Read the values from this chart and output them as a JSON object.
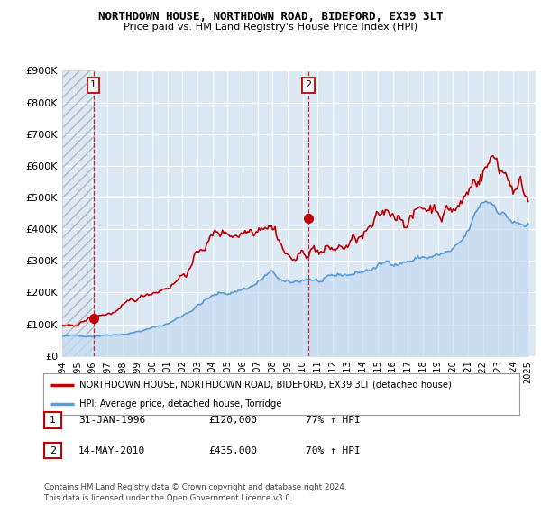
{
  "title": "NORTHDOWN HOUSE, NORTHDOWN ROAD, BIDEFORD, EX39 3LT",
  "subtitle": "Price paid vs. HM Land Registry's House Price Index (HPI)",
  "background_color": "#ffffff",
  "plot_bg_color": "#dce9f5",
  "grid_color": "#ffffff",
  "hpi_color": "#5b9bd5",
  "hpi_fill_color": "#c5d9f0",
  "sale_color": "#c00000",
  "hatch_color": "#b0b8c8",
  "ylim": [
    0,
    900000
  ],
  "yticks": [
    0,
    100000,
    200000,
    300000,
    400000,
    500000,
    600000,
    700000,
    800000,
    900000
  ],
  "ytick_labels": [
    "£0",
    "£100K",
    "£200K",
    "£300K",
    "£400K",
    "£500K",
    "£600K",
    "£700K",
    "£800K",
    "£900K"
  ],
  "sale1_x": 1996.08,
  "sale1_y": 120000,
  "sale1_label": "1",
  "sale2_x": 2010.37,
  "sale2_y": 435000,
  "sale2_label": "2",
  "legend_line1": "NORTHDOWN HOUSE, NORTHDOWN ROAD, BIDEFORD, EX39 3LT (detached house)",
  "legend_line2": "HPI: Average price, detached house, Torridge",
  "table_row1": [
    "1",
    "31-JAN-1996",
    "£120,000",
    "77% ↑ HPI"
  ],
  "table_row2": [
    "2",
    "14-MAY-2010",
    "£435,000",
    "70% ↑ HPI"
  ],
  "footer": "Contains HM Land Registry data © Crown copyright and database right 2024.\nThis data is licensed under the Open Government Licence v3.0.",
  "xmin": 1994.0,
  "xmax": 2025.5,
  "xticks": [
    1994,
    1995,
    1996,
    1997,
    1998,
    1999,
    2000,
    2001,
    2002,
    2003,
    2004,
    2005,
    2006,
    2007,
    2008,
    2009,
    2010,
    2011,
    2012,
    2013,
    2014,
    2015,
    2016,
    2017,
    2018,
    2019,
    2020,
    2021,
    2022,
    2023,
    2024,
    2025
  ]
}
